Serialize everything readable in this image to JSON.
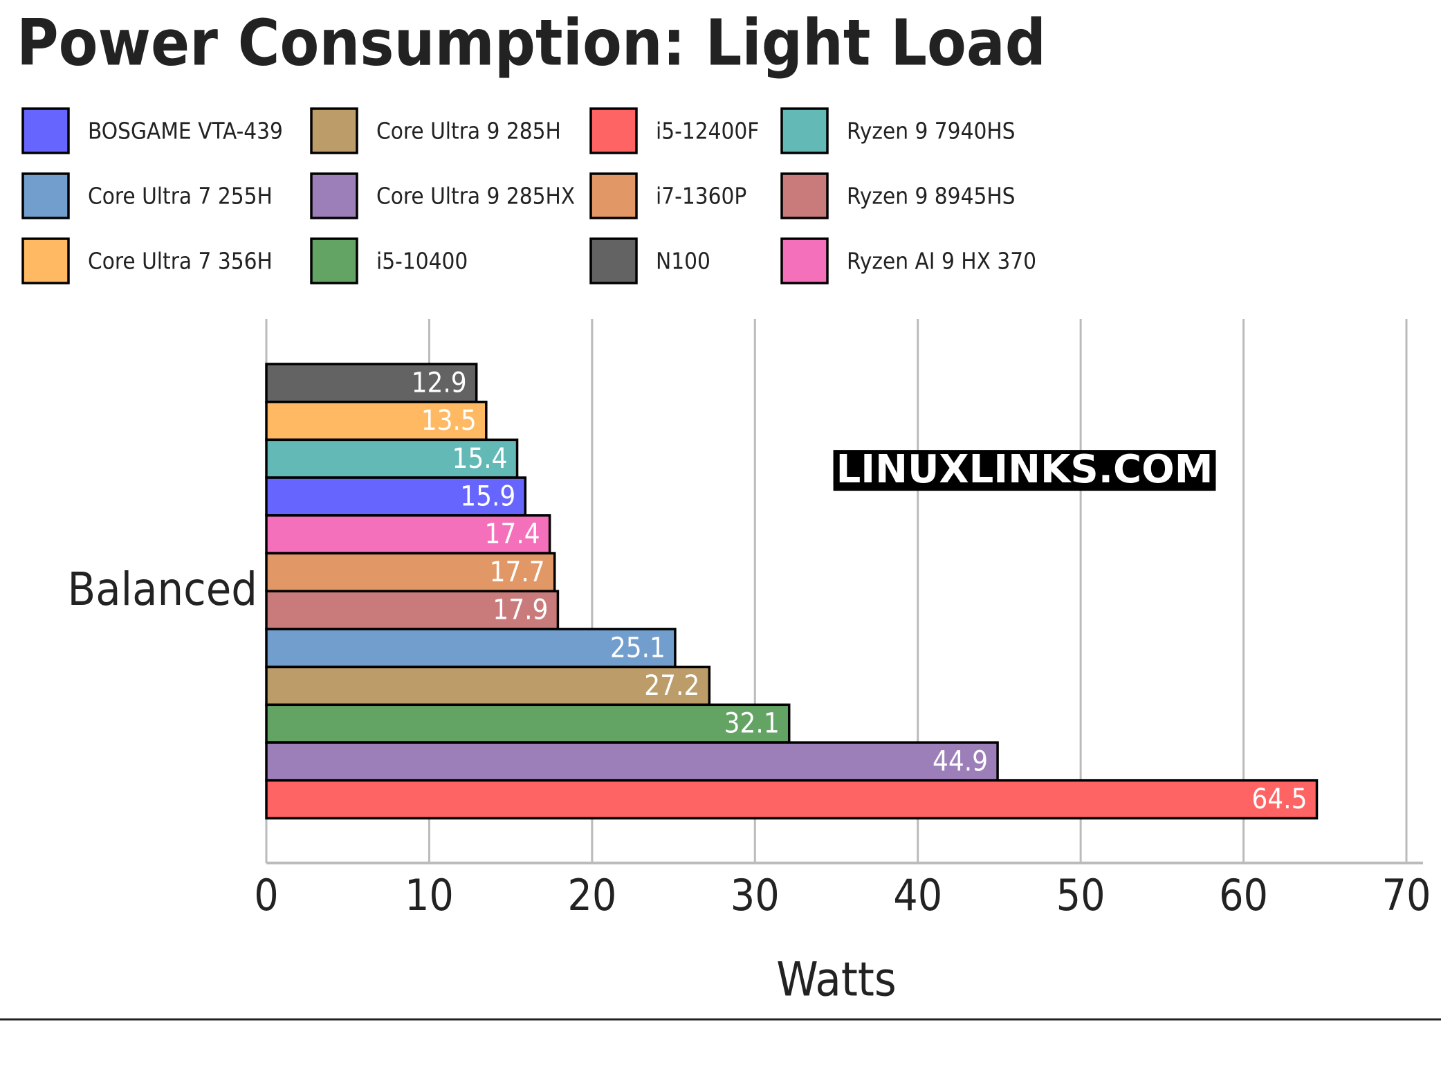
{
  "chart_data": {
    "type": "bar",
    "orientation": "horizontal",
    "title": "Power Consumption: Light Load",
    "categories": [
      "Balanced"
    ],
    "x_label": "Watts",
    "watermark": "LINUXLINKS.COM",
    "xlim": [
      0,
      70
    ],
    "xticks": [
      0,
      10,
      20,
      30,
      40,
      50,
      60,
      70
    ],
    "grid": true,
    "series": [
      {
        "name": "N100",
        "color": "#636363",
        "values": [
          12.9
        ]
      },
      {
        "name": "Core Ultra 7 356H",
        "color": "#ffb963",
        "values": [
          13.5
        ]
      },
      {
        "name": "Ryzen 9 7940HS",
        "color": "#63b9b6",
        "values": [
          15.4
        ]
      },
      {
        "name": "BOSGAME VTA-439",
        "color": "#6666ff",
        "values": [
          15.9
        ]
      },
      {
        "name": "Ryzen AI 9 HX 370",
        "color": "#f570bb",
        "values": [
          17.4
        ]
      },
      {
        "name": "i7-1360P",
        "color": "#e29866",
        "values": [
          17.7
        ]
      },
      {
        "name": "Ryzen 9 8945HS",
        "color": "#c97b7c",
        "values": [
          17.9
        ]
      },
      {
        "name": "Core Ultra 7 255H",
        "color": "#729ece",
        "values": [
          25.1
        ]
      },
      {
        "name": "Core Ultra 9 285H",
        "color": "#bc9c69",
        "values": [
          27.2
        ]
      },
      {
        "name": "i5-10400",
        "color": "#63a363",
        "values": [
          32.1
        ]
      },
      {
        "name": "Core Ultra 9 285HX",
        "color": "#9c7fb8",
        "values": [
          44.9
        ]
      },
      {
        "name": "i5-12400F",
        "color": "#ff6464",
        "values": [
          64.5
        ]
      }
    ]
  }
}
